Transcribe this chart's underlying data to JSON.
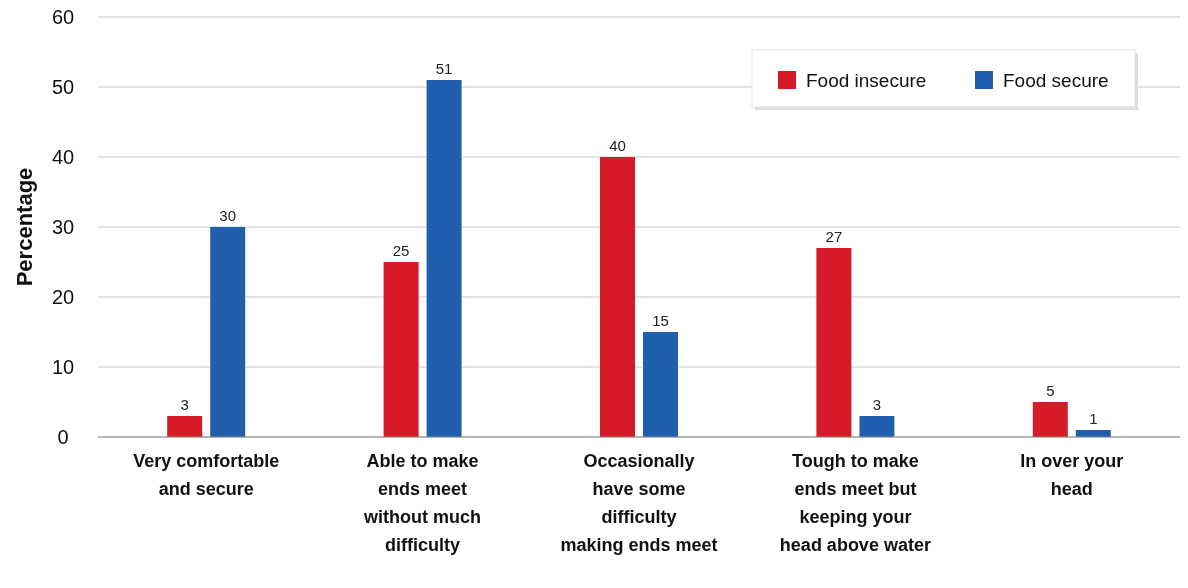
{
  "chart_data": {
    "type": "bar",
    "ylabel": "Percentage",
    "categories": [
      "Very comfortable and secure",
      "Able to make ends meet without much difficulty",
      "Occasionally have some difficulty making ends meet",
      "Tough to make ends meet but keeping your head above water",
      "In over your head"
    ],
    "series": [
      {
        "name": "Food insecure",
        "color": "#d71a28",
        "values": [
          3,
          25,
          40,
          27,
          5
        ]
      },
      {
        "name": "Food secure",
        "color": "#1f5fad",
        "values": [
          30,
          51,
          15,
          3,
          1
        ]
      }
    ],
    "ylim": [
      0,
      60
    ],
    "yticks": [
      0,
      10,
      20,
      30,
      40,
      50,
      60
    ],
    "grid": "y",
    "legend": "top right",
    "data_labels": true
  }
}
